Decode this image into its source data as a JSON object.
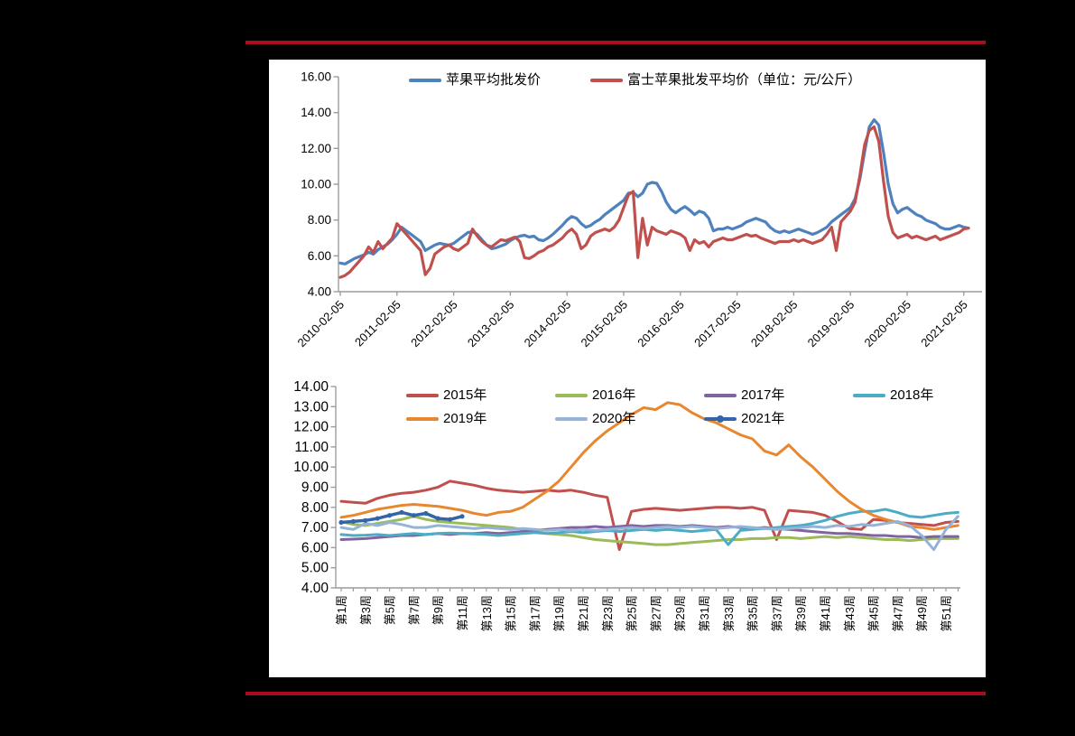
{
  "page": {
    "background_color": "#000000",
    "rule_color": "#AA0E1E",
    "panel_color": "#FFFFFF"
  },
  "chart_data": [
    {
      "type": "line",
      "title": "",
      "legend_position": "top",
      "grid": false,
      "ylim": [
        4,
        16
      ],
      "y_tick_labels": [
        "16.00",
        "14.00",
        "12.00",
        "10.00",
        "8.00",
        "6.00",
        "4.00"
      ],
      "x_tick_labels": [
        "2010-02-05",
        "2011-02-05",
        "2012-02-05",
        "2013-02-05",
        "2014-02-05",
        "2015-02-05",
        "2016-02-05",
        "2017-02-05",
        "2018-02-05",
        "2019-02-05",
        "2020-02-05",
        "2021-02-05"
      ],
      "x_sampling": "monthly_from_2010-02",
      "series": [
        {
          "name": "苹果平均批发价",
          "color": "#4F81BD",
          "values": [
            5.6,
            5.55,
            5.7,
            5.85,
            5.95,
            6.05,
            6.2,
            6.1,
            6.35,
            6.5,
            6.65,
            6.9,
            7.2,
            7.6,
            7.4,
            7.2,
            7.0,
            6.8,
            6.3,
            6.45,
            6.6,
            6.7,
            6.65,
            6.6,
            6.7,
            6.9,
            7.1,
            7.3,
            7.35,
            7.2,
            6.9,
            6.6,
            6.4,
            6.45,
            6.55,
            6.65,
            6.85,
            7.0,
            7.1,
            7.15,
            7.05,
            7.1,
            6.9,
            6.85,
            7.0,
            7.2,
            7.45,
            7.7,
            8.0,
            8.2,
            8.1,
            7.8,
            7.6,
            7.7,
            7.9,
            8.05,
            8.3,
            8.5,
            8.7,
            8.9,
            9.1,
            9.5,
            9.55,
            9.3,
            9.5,
            10.0,
            10.1,
            10.05,
            9.6,
            9.0,
            8.6,
            8.4,
            8.6,
            8.75,
            8.55,
            8.3,
            8.5,
            8.4,
            8.1,
            7.4,
            7.5,
            7.5,
            7.6,
            7.5,
            7.6,
            7.7,
            7.9,
            8.0,
            8.1,
            8.0,
            7.9,
            7.6,
            7.4,
            7.3,
            7.4,
            7.3,
            7.4,
            7.5,
            7.4,
            7.3,
            7.2,
            7.3,
            7.45,
            7.6,
            7.9,
            8.1,
            8.3,
            8.5,
            8.7,
            9.2,
            10.3,
            11.8,
            13.2,
            13.6,
            13.3,
            11.8,
            10.0,
            8.9,
            8.4,
            8.6,
            8.7,
            8.5,
            8.3,
            8.2,
            8.0,
            7.9,
            7.8,
            7.6,
            7.5,
            7.5,
            7.6,
            7.7,
            7.6,
            7.55
          ]
        },
        {
          "name": "富士苹果批发平均价（单位：元/公斤）",
          "color": "#C0504D",
          "values": [
            4.8,
            4.9,
            5.1,
            5.4,
            5.7,
            6.0,
            6.5,
            6.2,
            6.8,
            6.4,
            6.7,
            7.0,
            7.8,
            7.5,
            7.2,
            6.9,
            6.6,
            6.3,
            4.95,
            5.3,
            6.1,
            6.3,
            6.5,
            6.6,
            6.4,
            6.3,
            6.5,
            6.7,
            7.5,
            7.1,
            6.8,
            6.6,
            6.5,
            6.7,
            6.9,
            6.85,
            6.95,
            7.05,
            6.8,
            5.9,
            5.85,
            6.0,
            6.2,
            6.3,
            6.5,
            6.6,
            6.8,
            7.0,
            7.3,
            7.5,
            7.2,
            6.4,
            6.6,
            7.1,
            7.3,
            7.4,
            7.5,
            7.4,
            7.6,
            8.0,
            8.7,
            9.4,
            9.6,
            5.9,
            8.1,
            6.6,
            7.6,
            7.4,
            7.3,
            7.2,
            7.4,
            7.3,
            7.2,
            7.0,
            6.3,
            6.9,
            6.7,
            6.8,
            6.5,
            6.8,
            6.9,
            7.0,
            6.9,
            6.9,
            7.0,
            7.1,
            7.2,
            7.1,
            7.15,
            7.0,
            6.9,
            6.8,
            6.7,
            6.8,
            6.8,
            6.8,
            6.9,
            6.8,
            6.9,
            6.8,
            6.7,
            6.8,
            6.9,
            7.2,
            7.6,
            6.3,
            7.9,
            8.2,
            8.5,
            9.0,
            10.5,
            12.2,
            13.0,
            13.2,
            12.4,
            10.2,
            8.2,
            7.3,
            7.0,
            7.1,
            7.2,
            7.0,
            7.1,
            7.0,
            6.9,
            7.0,
            7.1,
            6.9,
            7.0,
            7.1,
            7.2,
            7.3,
            7.5,
            7.55
          ]
        }
      ]
    },
    {
      "type": "line",
      "title": "",
      "legend_position": "top",
      "grid": false,
      "ylim": [
        4,
        14
      ],
      "y_tick_labels": [
        "14.00",
        "13.00",
        "12.00",
        "11.00",
        "10.00",
        "9.00",
        "8.00",
        "7.00",
        "6.00",
        "5.00",
        "4.00"
      ],
      "x_tick_labels": [
        "第1周",
        "第3周",
        "第5周",
        "第7周",
        "第9周",
        "第11周",
        "第13周",
        "第15周",
        "第17周",
        "第19周",
        "第21周",
        "第23周",
        "第25周",
        "第27周",
        "第29周",
        "第31周",
        "第33周",
        "第35周",
        "第37周",
        "第39周",
        "第41周",
        "第43周",
        "第45周",
        "第47周",
        "第49周",
        "第51周"
      ],
      "weeks": 52,
      "series": [
        {
          "name": "2015年",
          "color": "#C0504D",
          "values": [
            8.3,
            8.25,
            8.2,
            8.45,
            8.6,
            8.7,
            8.75,
            8.85,
            9.0,
            9.3,
            9.2,
            9.1,
            8.95,
            8.85,
            8.8,
            8.75,
            8.8,
            8.85,
            8.8,
            8.85,
            8.75,
            8.6,
            8.5,
            5.9,
            7.8,
            7.9,
            7.95,
            7.9,
            7.85,
            7.9,
            7.95,
            8.0,
            8.0,
            7.95,
            8.0,
            7.85,
            6.4,
            7.85,
            7.8,
            7.75,
            7.6,
            7.3,
            6.95,
            6.9,
            7.4,
            7.35,
            7.25,
            7.2,
            7.15,
            7.1,
            7.25,
            7.3
          ]
        },
        {
          "name": "2016年",
          "color": "#9BBB59",
          "values": [
            7.3,
            7.15,
            7.1,
            7.2,
            7.3,
            7.4,
            7.55,
            7.4,
            7.3,
            7.25,
            7.2,
            7.15,
            7.1,
            7.05,
            7.0,
            6.9,
            6.8,
            6.7,
            6.65,
            6.6,
            6.5,
            6.4,
            6.35,
            6.3,
            6.25,
            6.2,
            6.15,
            6.15,
            6.2,
            6.25,
            6.3,
            6.35,
            6.4,
            6.4,
            6.45,
            6.45,
            6.5,
            6.5,
            6.45,
            6.5,
            6.55,
            6.5,
            6.55,
            6.5,
            6.45,
            6.4,
            6.4,
            6.35,
            6.4,
            6.45,
            6.45,
            6.45
          ]
        },
        {
          "name": "2017年",
          "color": "#8064A2",
          "values": [
            6.4,
            6.42,
            6.45,
            6.5,
            6.55,
            6.6,
            6.6,
            6.65,
            6.7,
            6.65,
            6.7,
            6.7,
            6.75,
            6.7,
            6.75,
            6.8,
            6.85,
            6.9,
            6.95,
            7.0,
            7.0,
            7.05,
            7.0,
            7.05,
            7.1,
            7.05,
            7.1,
            7.1,
            7.05,
            7.1,
            7.05,
            7.0,
            7.05,
            7.0,
            6.95,
            7.0,
            6.95,
            6.9,
            6.85,
            6.8,
            6.75,
            6.7,
            6.7,
            6.65,
            6.6,
            6.6,
            6.55,
            6.55,
            6.5,
            6.55,
            6.55,
            6.55
          ]
        },
        {
          "name": "2018年",
          "color": "#4BACC6",
          "values": [
            6.65,
            6.6,
            6.62,
            6.65,
            6.6,
            6.65,
            6.7,
            6.65,
            6.7,
            6.72,
            6.7,
            6.68,
            6.65,
            6.6,
            6.65,
            6.7,
            6.75,
            6.7,
            6.75,
            6.8,
            6.75,
            6.8,
            6.85,
            6.8,
            6.85,
            6.9,
            6.85,
            6.9,
            6.85,
            6.8,
            6.85,
            6.9,
            6.15,
            6.85,
            6.9,
            6.95,
            7.0,
            7.05,
            7.1,
            7.2,
            7.35,
            7.55,
            7.7,
            7.8,
            7.8,
            7.9,
            7.75,
            7.55,
            7.5,
            7.6,
            7.7,
            7.75
          ]
        },
        {
          "name": "2019年",
          "color": "#E8872E",
          "values": [
            7.5,
            7.6,
            7.75,
            7.9,
            8.0,
            8.1,
            8.15,
            8.1,
            8.05,
            7.95,
            7.85,
            7.7,
            7.6,
            7.75,
            7.8,
            8.0,
            8.4,
            8.8,
            9.3,
            10.0,
            10.7,
            11.3,
            11.8,
            12.2,
            12.6,
            12.95,
            12.85,
            13.2,
            13.1,
            12.7,
            12.4,
            12.2,
            11.9,
            11.6,
            11.4,
            10.8,
            10.6,
            11.1,
            10.5,
            10.0,
            9.4,
            8.8,
            8.3,
            7.9,
            7.6,
            7.4,
            7.25,
            7.05,
            7.0,
            6.9,
            7.0,
            7.1
          ]
        },
        {
          "name": "2020年",
          "color": "#95B3D7",
          "values": [
            7.0,
            6.9,
            7.2,
            7.1,
            7.25,
            7.15,
            7.0,
            7.0,
            7.1,
            7.05,
            7.0,
            6.95,
            7.0,
            6.95,
            6.9,
            6.95,
            6.9,
            6.85,
            6.9,
            6.85,
            6.9,
            6.85,
            6.9,
            6.95,
            7.0,
            6.95,
            7.0,
            7.05,
            7.0,
            7.05,
            7.0,
            6.95,
            7.0,
            7.05,
            7.0,
            6.95,
            6.9,
            6.95,
            7.0,
            7.05,
            7.0,
            7.1,
            7.05,
            7.15,
            7.1,
            7.2,
            7.3,
            7.1,
            6.6,
            5.9,
            6.9,
            7.55
          ]
        },
        {
          "name": "2021年",
          "color": "#3465A8",
          "marker": "dot",
          "values": [
            7.25,
            7.3,
            7.35,
            7.45,
            7.6,
            7.75,
            7.6,
            7.7,
            7.45,
            7.4,
            7.55
          ]
        }
      ]
    }
  ]
}
